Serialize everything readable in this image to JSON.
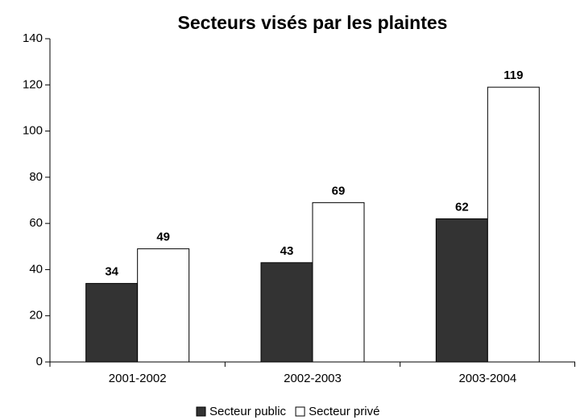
{
  "chart_data": {
    "type": "bar",
    "title": "Secteurs visés par les plaintes",
    "categories": [
      "2001-2002",
      "2002-2003",
      "2003-2004"
    ],
    "series": [
      {
        "name": "Secteur public",
        "color": "#333333",
        "values": [
          34,
          43,
          62
        ]
      },
      {
        "name": "Secteur privé",
        "color": "#ffffff",
        "values": [
          49,
          69,
          119
        ]
      }
    ],
    "ylim": [
      0,
      140
    ],
    "yticks": [
      0,
      20,
      40,
      60,
      80,
      100,
      120,
      140
    ],
    "grid": false,
    "legend": "bottom"
  }
}
